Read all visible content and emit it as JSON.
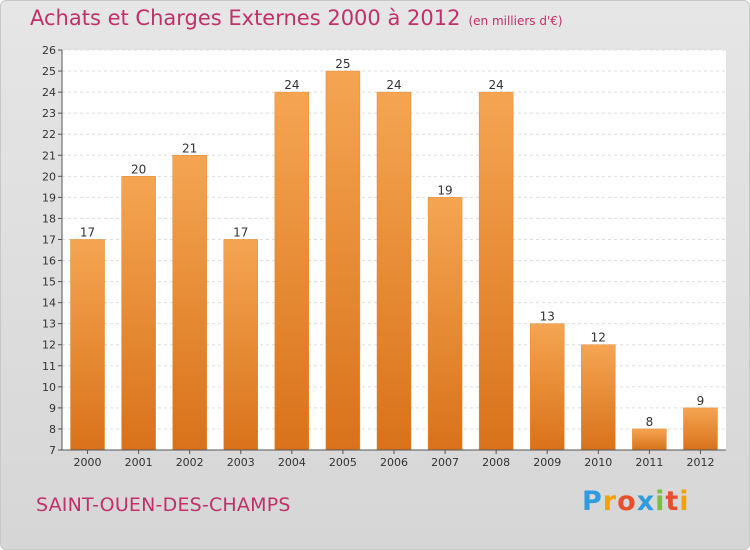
{
  "header": {
    "title": "Achats et Charges Externes 2000 à 2012",
    "subtitle": "(en milliers d'€)"
  },
  "footer": {
    "city": "SAINT-OUEN-DES-CHAMPS",
    "brand": {
      "text": "Proxiti",
      "letters": [
        {
          "ch": "P",
          "color": "#2f9be0"
        },
        {
          "ch": "r",
          "color": "#f2a300"
        },
        {
          "ch": "o",
          "color": "#e8502d"
        },
        {
          "ch": "x",
          "color": "#2f9be0"
        },
        {
          "ch": "i",
          "color": "#7ac043"
        },
        {
          "ch": "t",
          "color": "#e8502d"
        },
        {
          "ch": "i",
          "color": "#f2a300"
        }
      ]
    }
  },
  "chart_data": {
    "type": "bar",
    "categories": [
      "2000",
      "2001",
      "2002",
      "2003",
      "2004",
      "2005",
      "2006",
      "2007",
      "2008",
      "2009",
      "2010",
      "2011",
      "2012"
    ],
    "values": [
      17,
      20,
      21,
      17,
      24,
      25,
      24,
      19,
      24,
      13,
      12,
      8,
      9
    ],
    "ylim": [
      7,
      26
    ],
    "yticks": [
      7,
      8,
      9,
      10,
      11,
      12,
      13,
      14,
      15,
      16,
      17,
      18,
      19,
      20,
      21,
      22,
      23,
      24,
      25,
      26
    ],
    "grid": true,
    "bar_color_top": "#f5a552",
    "bar_color_bottom": "#d9721a"
  }
}
